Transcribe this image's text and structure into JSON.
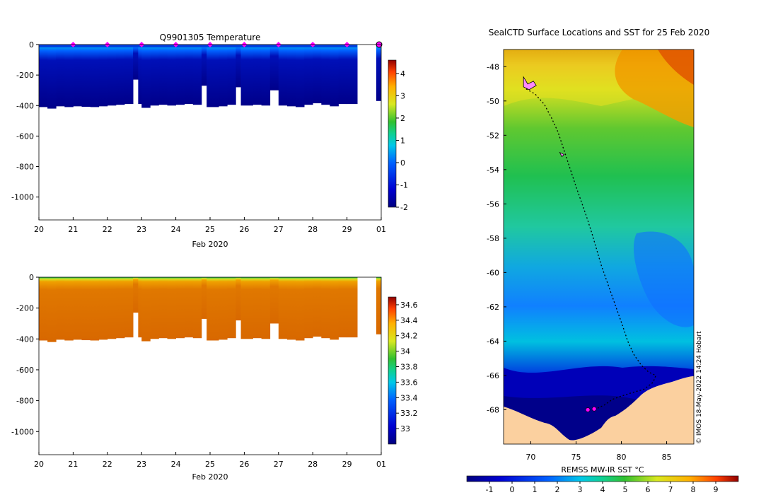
{
  "chart_data": [
    {
      "type": "heatmap",
      "title": "Q9901305  Temperature",
      "xlabel": "Feb 2020",
      "xticks": [
        "20",
        "21",
        "22",
        "23",
        "24",
        "25",
        "26",
        "27",
        "28",
        "29",
        "01"
      ],
      "xlim": [
        20,
        30
      ],
      "ylim": [
        -1150,
        0
      ],
      "yticks": [
        0,
        -200,
        -400,
        -600,
        -800,
        -1000
      ],
      "colorbar": {
        "min": -2,
        "max": 4.6,
        "ticks": [
          -2,
          -1,
          0,
          1,
          2,
          3,
          4
        ]
      },
      "profiles": [
        {
          "t": 20.0,
          "depth": 410
        },
        {
          "t": 20.25,
          "depth": 420
        },
        {
          "t": 20.5,
          "depth": 405
        },
        {
          "t": 20.75,
          "depth": 410
        },
        {
          "t": 21.0,
          "depth": 405
        },
        {
          "t": 21.25,
          "depth": 408
        },
        {
          "t": 21.5,
          "depth": 410
        },
        {
          "t": 21.75,
          "depth": 405
        },
        {
          "t": 22.0,
          "depth": 400
        },
        {
          "t": 22.25,
          "depth": 395
        },
        {
          "t": 22.5,
          "depth": 390
        },
        {
          "t": 22.75,
          "depth": 230
        },
        {
          "t": 22.9,
          "depth": 390
        },
        {
          "t": 23.0,
          "depth": 415
        },
        {
          "t": 23.25,
          "depth": 400
        },
        {
          "t": 23.5,
          "depth": 395
        },
        {
          "t": 23.75,
          "depth": 400
        },
        {
          "t": 24.0,
          "depth": 395
        },
        {
          "t": 24.25,
          "depth": 390
        },
        {
          "t": 24.5,
          "depth": 395
        },
        {
          "t": 24.75,
          "depth": 270
        },
        {
          "t": 24.9,
          "depth": 410
        },
        {
          "t": 25.25,
          "depth": 405
        },
        {
          "t": 25.5,
          "depth": 395
        },
        {
          "t": 25.75,
          "depth": 280
        },
        {
          "t": 25.9,
          "depth": 400
        },
        {
          "t": 26.25,
          "depth": 395
        },
        {
          "t": 26.5,
          "depth": 400
        },
        {
          "t": 26.75,
          "depth": 300
        },
        {
          "t": 27.0,
          "depth": 400
        },
        {
          "t": 27.25,
          "depth": 405
        },
        {
          "t": 27.5,
          "depth": 410
        },
        {
          "t": 27.75,
          "depth": 395
        },
        {
          "t": 28.0,
          "depth": 385
        },
        {
          "t": 28.25,
          "depth": 395
        },
        {
          "t": 28.5,
          "depth": 405
        },
        {
          "t": 28.75,
          "depth": 390
        },
        {
          "t": 29.0,
          "depth": 390
        },
        {
          "t": 30.0,
          "depth": 370
        }
      ],
      "markers": [
        21,
        22,
        23,
        24,
        25,
        26,
        27,
        28,
        29
      ],
      "marker_color": "#ff00ff",
      "end_marker": 30
    },
    {
      "type": "heatmap",
      "title": "",
      "xlabel": "Feb 2020",
      "xticks": [
        "20",
        "21",
        "22",
        "23",
        "24",
        "25",
        "26",
        "27",
        "28",
        "29",
        "01"
      ],
      "xlim": [
        20,
        30
      ],
      "ylim": [
        -1150,
        0
      ],
      "yticks": [
        0,
        -200,
        -400,
        -600,
        -800,
        -1000
      ],
      "colorbar": {
        "min": 32.8,
        "max": 34.7,
        "ticks": [
          33,
          33.2,
          33.4,
          33.6,
          33.8,
          34,
          34.2,
          34.4,
          34.6
        ]
      },
      "profiles_ref": "same as temperature"
    },
    {
      "type": "heatmap",
      "title": "SealCTD Surface Locations and SST for 25 Feb 2020",
      "xticks": [
        70,
        75,
        80,
        85
      ],
      "yticks": [
        -48,
        -50,
        -52,
        -54,
        -56,
        -58,
        -60,
        -62,
        -64,
        -66,
        -68
      ],
      "xlim": [
        67,
        88
      ],
      "ylim": [
        -70,
        -47
      ],
      "colorbar": {
        "label": "REMSS MW-IR SST °C",
        "min": -2,
        "max": 10,
        "ticks": [
          -1,
          0,
          1,
          2,
          3,
          4,
          5,
          6,
          7,
          8,
          9
        ]
      },
      "track": [
        [
          69.5,
          -49.3
        ],
        [
          70.5,
          -49.6
        ],
        [
          71.5,
          -50.2
        ],
        [
          72.3,
          -51.0
        ],
        [
          73.0,
          -51.8
        ],
        [
          73.5,
          -52.6
        ],
        [
          74.0,
          -53.4
        ],
        [
          74.5,
          -54.2
        ],
        [
          75.0,
          -55.0
        ],
        [
          75.6,
          -55.9
        ],
        [
          76.2,
          -56.8
        ],
        [
          76.8,
          -57.8
        ],
        [
          77.3,
          -58.7
        ],
        [
          77.8,
          -59.6
        ],
        [
          78.4,
          -60.5
        ],
        [
          79.0,
          -61.4
        ],
        [
          79.6,
          -62.3
        ],
        [
          80.2,
          -63.2
        ],
        [
          80.7,
          -64.0
        ],
        [
          81.4,
          -64.8
        ],
        [
          82.2,
          -65.4
        ],
        [
          83.0,
          -65.8
        ],
        [
          83.8,
          -66.0
        ],
        [
          83.5,
          -66.4
        ],
        [
          82.5,
          -66.8
        ],
        [
          81.2,
          -67.0
        ],
        [
          80.0,
          -67.2
        ],
        [
          79.0,
          -67.4
        ],
        [
          78.2,
          -67.7
        ],
        [
          77.2,
          -67.95
        ]
      ],
      "pink_points": [
        [
          76.3,
          -68.0
        ],
        [
          77.0,
          -67.95
        ]
      ],
      "credit": "© IMOS 18-May-2022 14:24 Hobart"
    }
  ]
}
